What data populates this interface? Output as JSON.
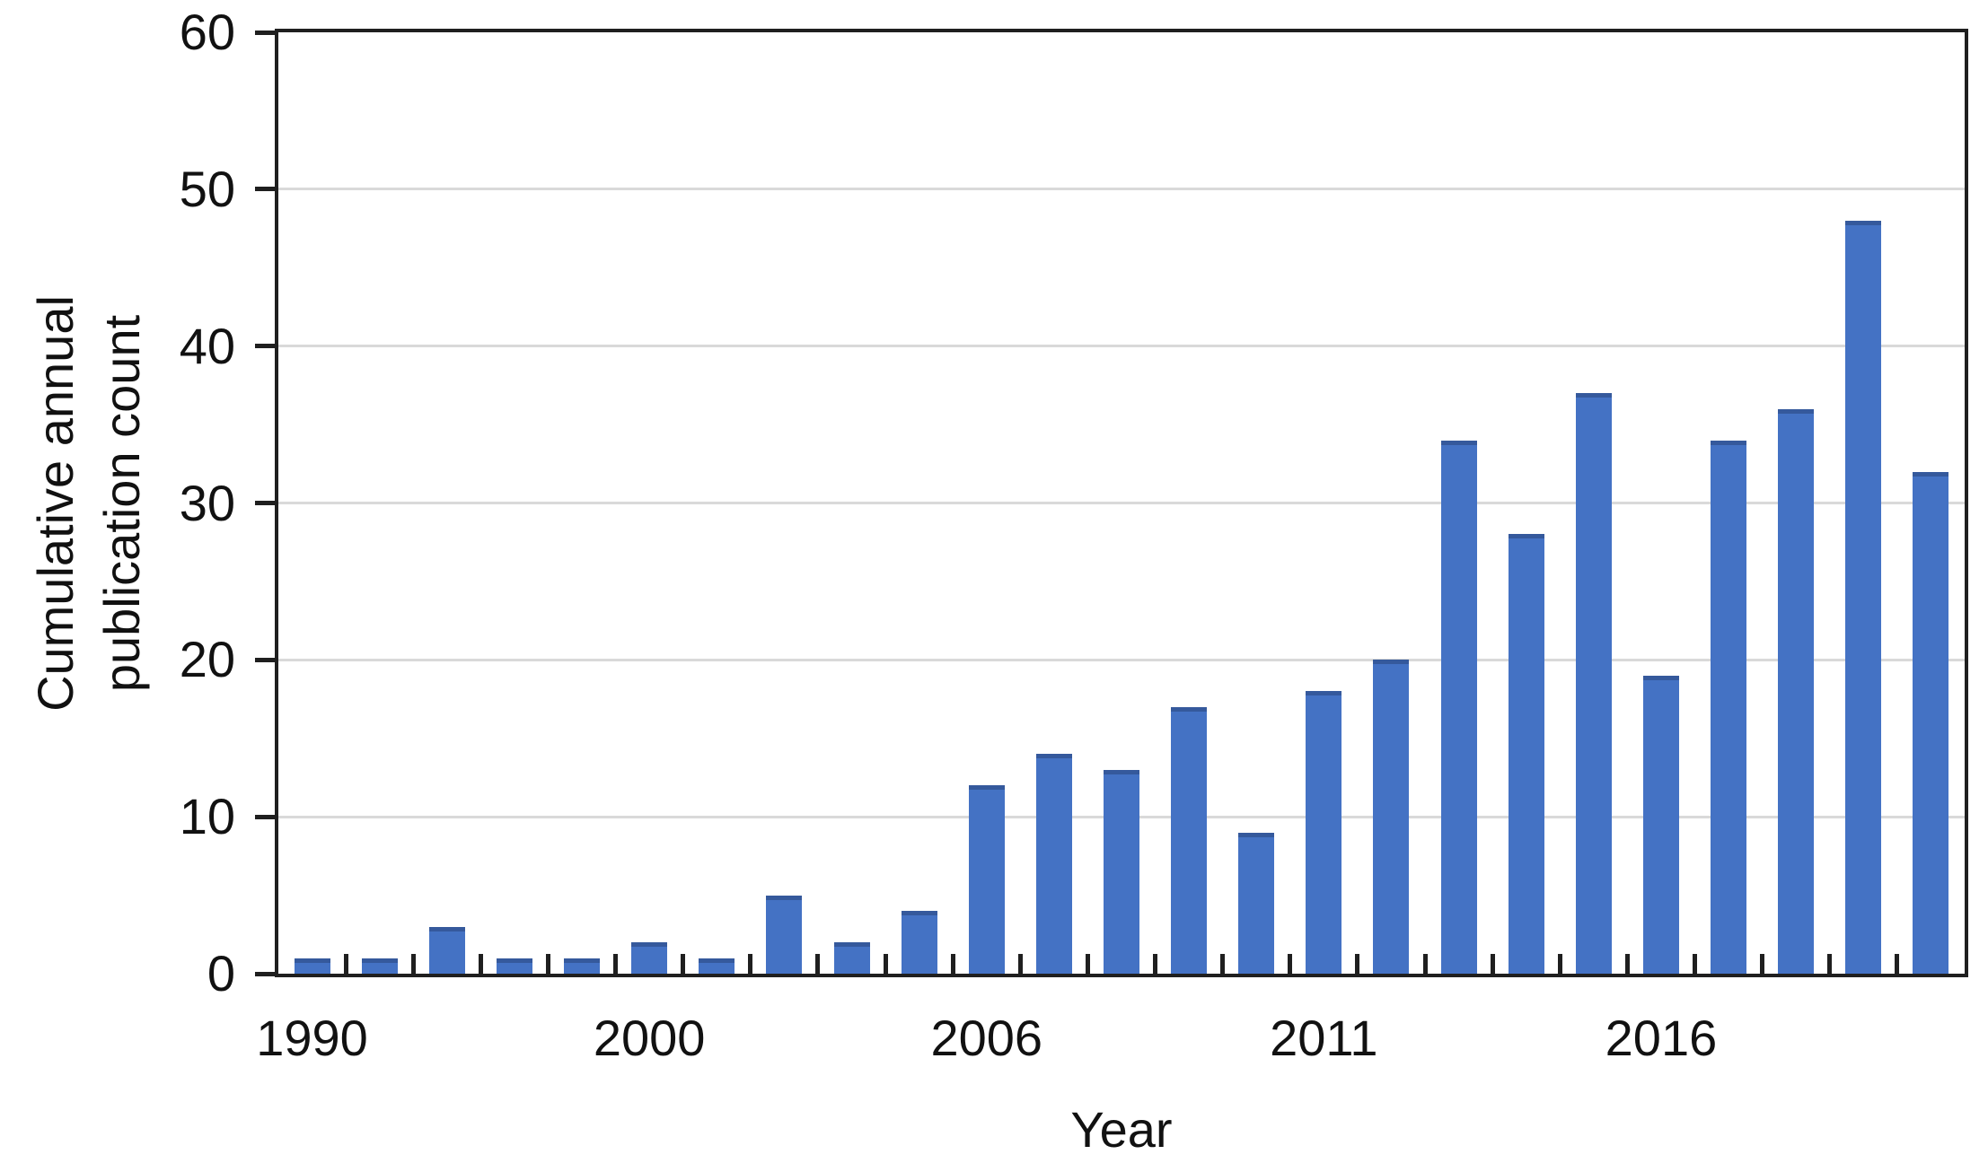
{
  "chart_data": {
    "type": "bar",
    "title": "",
    "xlabel": "Year",
    "ylabel": "Cumulative annual publication count",
    "ylabel_lines": [
      "Cumulative annual",
      "publication count"
    ],
    "ylim": [
      0,
      60
    ],
    "yticks": [
      0,
      10,
      20,
      30,
      40,
      50,
      60
    ],
    "grid": "horizontal",
    "x_axis_type": "categorical",
    "n_bars": 25,
    "values": [
      1,
      1,
      3,
      1,
      1,
      2,
      1,
      5,
      2,
      4,
      12,
      14,
      13,
      17,
      9,
      18,
      20,
      34,
      28,
      37,
      19,
      34,
      36,
      48,
      32
    ],
    "xtick_labels": [
      {
        "bar_index": 0,
        "label": "1990"
      },
      {
        "bar_index": 5,
        "label": "2000"
      },
      {
        "bar_index": 10,
        "label": "2006"
      },
      {
        "bar_index": 15,
        "label": "2011"
      },
      {
        "bar_index": 20,
        "label": "2016"
      }
    ],
    "colors": {
      "bar_fill": "#4472C4",
      "bar_top_edge": "#35599C",
      "gridline": "#D9D9D9",
      "axis_box": "#1F1F1F",
      "text": "#111111",
      "background": "#FFFFFF"
    }
  }
}
